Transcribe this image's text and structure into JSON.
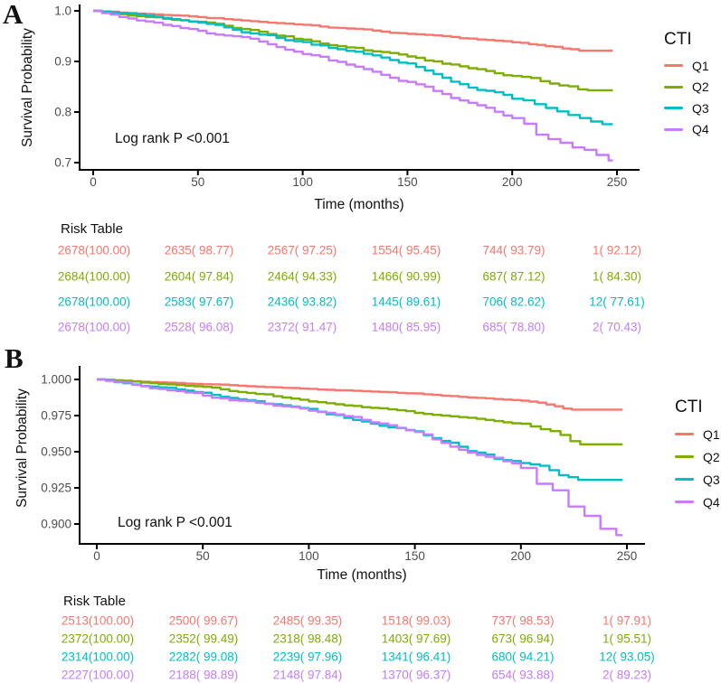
{
  "panels": [
    {
      "label": "A",
      "ylabel": "Survival Probability",
      "xlabel": "Time (months)",
      "annotation": "Log rank P <0.001",
      "legend": {
        "title": "CTI",
        "items": [
          "Q1",
          "Q2",
          "Q3",
          "Q4"
        ]
      },
      "x_ticks": [
        0,
        50,
        100,
        150,
        200,
        250
      ],
      "y_ticks": [
        {
          "label": "1.0",
          "v": 1.0
        },
        {
          "label": "0.9",
          "v": 0.9
        },
        {
          "label": "0.8",
          "v": 0.8
        },
        {
          "label": "0.7",
          "v": 0.7
        }
      ],
      "risk_table": {
        "title": "Risk Table",
        "rows": [
          {
            "name": "Q1",
            "color": "#F8766D",
            "cells": [
              "2678(100.00)",
              "2635( 98.77)",
              "2567( 97.25)",
              "1554( 95.45)",
              "744( 93.79)",
              "1( 92.12)"
            ]
          },
          {
            "name": "Q2",
            "color": "#7CAE00",
            "cells": [
              "2684(100.00)",
              "2604( 97.84)",
              "2464( 94.33)",
              "1466( 90.99)",
              "687( 87.12)",
              "1( 84.30)"
            ]
          },
          {
            "name": "Q3",
            "color": "#00BFC4",
            "cells": [
              "2678(100.00)",
              "2583( 97.67)",
              "2436( 93.82)",
              "1445( 89.61)",
              "706( 82.62)",
              "12( 77.61)"
            ]
          },
          {
            "name": "Q4",
            "color": "#C77CFF",
            "cells": [
              "2678(100.00)",
              "2528( 96.08)",
              "2372( 91.47)",
              "1480( 85.95)",
              "685( 78.80)",
              "2( 70.43)"
            ]
          }
        ]
      }
    },
    {
      "label": "B",
      "ylabel": "Survival Probability",
      "xlabel": "Time (months)",
      "annotation": "Log rank P <0.001",
      "legend": {
        "title": "CTI",
        "items": [
          "Q1",
          "Q2",
          "Q3",
          "Q4"
        ]
      },
      "x_ticks": [
        0,
        50,
        100,
        150,
        200,
        250
      ],
      "y_ticks": [
        {
          "label": "1.000",
          "v": 1.0
        },
        {
          "label": "0.975",
          "v": 0.975
        },
        {
          "label": "0.950",
          "v": 0.95
        },
        {
          "label": "0.925",
          "v": 0.925
        },
        {
          "label": "0.900",
          "v": 0.9
        }
      ],
      "risk_table": {
        "title": "Risk Table",
        "rows": [
          {
            "name": "Q1",
            "color": "#F8766D",
            "cells": [
              "2513(100.00)",
              "2500( 99.67)",
              "2485( 99.35)",
              "1518( 99.03)",
              "737( 98.53)",
              "1( 97.91)"
            ]
          },
          {
            "name": "Q2",
            "color": "#7CAE00",
            "cells": [
              "2372(100.00)",
              "2352( 99.49)",
              "2318( 98.48)",
              "1403( 97.69)",
              "673( 96.94)",
              "1( 95.51)"
            ]
          },
          {
            "name": "Q3",
            "color": "#00BFC4",
            "cells": [
              "2314(100.00)",
              "2282( 99.08)",
              "2239( 97.96)",
              "1341( 96.41)",
              "680( 94.21)",
              "12( 93.05)"
            ]
          },
          {
            "name": "Q4",
            "color": "#C77CFF",
            "cells": [
              "2227(100.00)",
              "2188( 98.89)",
              "2148( 97.84)",
              "1370( 96.37)",
              "654( 93.88)",
              "2( 89.23)"
            ]
          }
        ]
      }
    }
  ],
  "chart_data": [
    {
      "type": "line",
      "subtype": "kaplan-meier-step",
      "panel": "A",
      "xlabel": "Time (months)",
      "ylabel": "Survival Probability",
      "xlim": [
        0,
        250
      ],
      "ylim": [
        0.7,
        1.0
      ],
      "x": [
        0,
        50,
        100,
        150,
        200,
        250
      ],
      "series": [
        {
          "name": "Q1",
          "color": "#F8766D",
          "values": [
            1.0,
            0.9877,
            0.9725,
            0.9545,
            0.9379,
            0.9212
          ],
          "at_risk": [
            2678,
            2635,
            2567,
            1554,
            744,
            1
          ]
        },
        {
          "name": "Q2",
          "color": "#7CAE00",
          "values": [
            1.0,
            0.9784,
            0.9433,
            0.9099,
            0.8712,
            0.843
          ],
          "at_risk": [
            2684,
            2604,
            2464,
            1466,
            687,
            1
          ]
        },
        {
          "name": "Q3",
          "color": "#00BFC4",
          "values": [
            1.0,
            0.9767,
            0.9382,
            0.8961,
            0.8262,
            0.7761
          ],
          "at_risk": [
            2678,
            2583,
            2436,
            1445,
            706,
            12
          ]
        },
        {
          "name": "Q4",
          "color": "#C77CFF",
          "values": [
            1.0,
            0.9608,
            0.9147,
            0.8595,
            0.788,
            0.7043
          ],
          "at_risk": [
            2678,
            2528,
            2372,
            1480,
            685,
            2
          ]
        }
      ],
      "legend_title": "CTI",
      "legend_position": "right",
      "annotation": "Log rank P <0.001",
      "grid": false
    },
    {
      "type": "line",
      "subtype": "kaplan-meier-step",
      "panel": "B",
      "xlabel": "Time (months)",
      "ylabel": "Survival Probability",
      "xlim": [
        0,
        250
      ],
      "ylim": [
        0.9,
        1.0
      ],
      "x": [
        0,
        50,
        100,
        150,
        200,
        250
      ],
      "series": [
        {
          "name": "Q1",
          "color": "#F8766D",
          "values": [
            1.0,
            0.9967,
            0.9935,
            0.9903,
            0.9853,
            0.9791
          ],
          "at_risk": [
            2513,
            2500,
            2485,
            1518,
            737,
            1
          ]
        },
        {
          "name": "Q2",
          "color": "#7CAE00",
          "values": [
            1.0,
            0.9949,
            0.9848,
            0.9769,
            0.9694,
            0.9551
          ],
          "at_risk": [
            2372,
            2352,
            2318,
            1403,
            673,
            1
          ]
        },
        {
          "name": "Q3",
          "color": "#00BFC4",
          "values": [
            1.0,
            0.9908,
            0.9796,
            0.9641,
            0.9421,
            0.9305
          ],
          "at_risk": [
            2314,
            2282,
            2239,
            1341,
            680,
            12
          ]
        },
        {
          "name": "Q4",
          "color": "#C77CFF",
          "values": [
            1.0,
            0.9889,
            0.9784,
            0.9637,
            0.9388,
            0.8923
          ],
          "at_risk": [
            2227,
            2188,
            2148,
            1370,
            654,
            2
          ]
        }
      ],
      "legend_title": "CTI",
      "legend_position": "right",
      "annotation": "Log rank P <0.001",
      "grid": false
    }
  ]
}
